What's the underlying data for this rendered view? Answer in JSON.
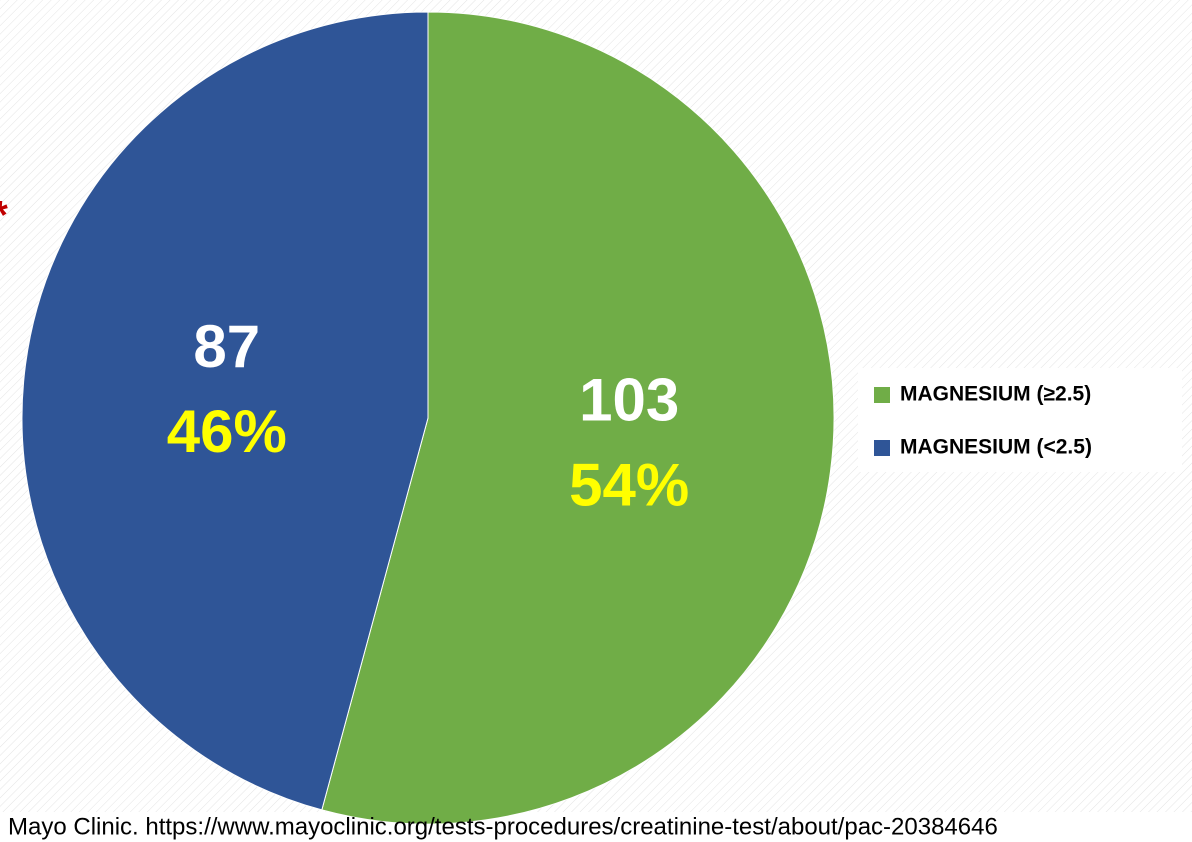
{
  "chart_data": {
    "type": "pie",
    "categories": [
      "MAGNESIUM (≥2.5)",
      "MAGNESIUM (<2.5)"
    ],
    "values": [
      103,
      87
    ],
    "percent_labels": [
      "54%",
      "46%"
    ],
    "colors": [
      "#70ad47",
      "#2f5597"
    ],
    "legend": "right",
    "annotation": "*",
    "source": "Mayo Clinic. https://www.mayoclinic.org/tests-procedures/creatinine-test/about/pac-20384646"
  }
}
